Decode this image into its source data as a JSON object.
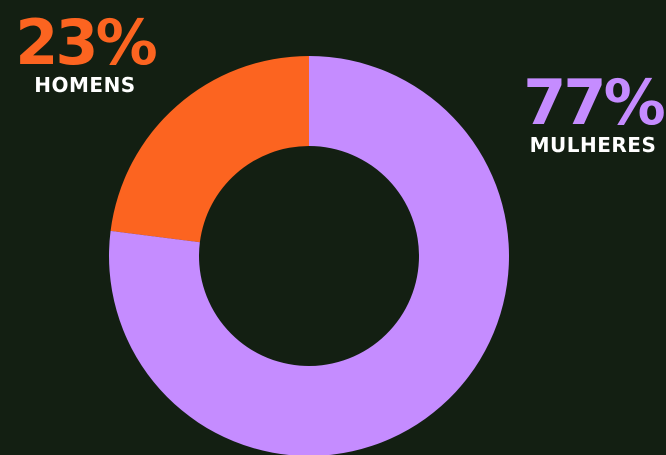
{
  "chart_data": {
    "type": "pie",
    "donut": true,
    "slices": [
      {
        "label": "HOMENS",
        "value": 23,
        "display": "23%",
        "color": "#fc6420"
      },
      {
        "label": "MULHERES",
        "value": 77,
        "display": "77%",
        "color": "#c58cff"
      }
    ],
    "legend": "none",
    "title": ""
  },
  "colors": {
    "background": "#131f12",
    "men": "#fc6420",
    "women": "#c58cff",
    "label_text": "#ffffff"
  }
}
